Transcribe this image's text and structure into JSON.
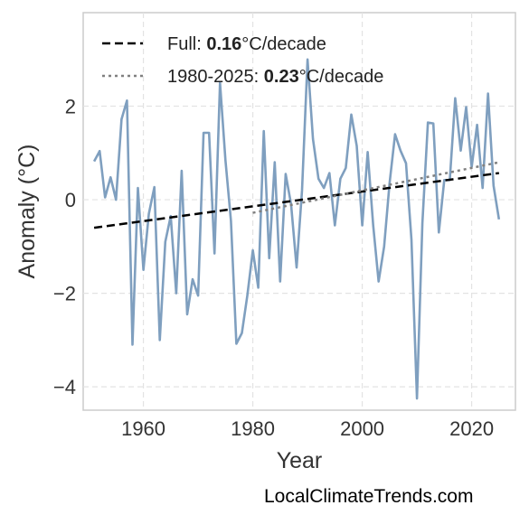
{
  "chart_data": {
    "type": "line",
    "xlabel": "Year",
    "ylabel": "Anomaly (°C)",
    "xlim": [
      1949,
      2028
    ],
    "ylim": [
      -4.5,
      4.0
    ],
    "xticks": [
      1960,
      1980,
      2000,
      2020
    ],
    "yticks": [
      2,
      0,
      -2,
      -4
    ],
    "ytick_labels": [
      "2",
      "0",
      "−2",
      "−4"
    ],
    "grid": true,
    "legend_position": "top-left",
    "series": [
      {
        "color": "#7f9fbf",
        "x": [
          1951,
          1952,
          1953,
          1954,
          1955,
          1956,
          1957,
          1958,
          1959,
          1960,
          1961,
          1962,
          1963,
          1964,
          1965,
          1966,
          1967,
          1968,
          1969,
          1970,
          1971,
          1972,
          1973,
          1974,
          1975,
          1976,
          1977,
          1978,
          1979,
          1980,
          1981,
          1982,
          1983,
          1984,
          1985,
          1986,
          1987,
          1988,
          1989,
          1990,
          1991,
          1992,
          1993,
          1994,
          1995,
          1996,
          1997,
          1998,
          1999,
          2000,
          2001,
          2002,
          2003,
          2004,
          2005,
          2006,
          2007,
          2008,
          2009,
          2010,
          2011,
          2012,
          2013,
          2014,
          2015,
          2016,
          2017,
          2018,
          2019,
          2020,
          2021,
          2022,
          2023,
          2024,
          2025
        ],
        "y": [
          0.82,
          1.04,
          0.05,
          0.48,
          0.0,
          1.72,
          2.12,
          -3.1,
          0.25,
          -1.5,
          -0.3,
          0.27,
          -3.0,
          -0.9,
          -0.35,
          -2.0,
          0.62,
          -2.45,
          -1.7,
          -2.05,
          1.43,
          1.43,
          -1.15,
          2.5,
          0.85,
          -0.45,
          -3.08,
          -2.85,
          -2.05,
          -1.08,
          -1.88,
          1.47,
          -1.25,
          0.8,
          -1.75,
          0.55,
          -0.1,
          -1.45,
          0.2,
          3.0,
          1.3,
          0.45,
          0.25,
          0.57,
          -0.55,
          0.45,
          0.68,
          1.82,
          1.15,
          -0.55,
          1.02,
          -0.55,
          -1.75,
          -1.0,
          0.35,
          1.4,
          1.05,
          0.78,
          -0.85,
          -4.25,
          -0.5,
          1.65,
          1.63,
          -0.7,
          0.42,
          0.42,
          2.17,
          1.05,
          1.98,
          0.7,
          1.6,
          0.25,
          2.27,
          0.3,
          -0.42
        ]
      }
    ],
    "trend_lines": [
      {
        "name_prefix": "Full: ",
        "name_value": "0.16",
        "name_suffix": "°C/decade",
        "style": "dashed",
        "color": "#000000",
        "x": [
          1951,
          2025
        ],
        "y": [
          -0.6,
          0.57
        ]
      },
      {
        "name_prefix": "1980-2025: ",
        "name_value": "0.23",
        "name_suffix": "°C/decade",
        "style": "dotted",
        "color": "#808080",
        "x": [
          1980,
          2025
        ],
        "y": [
          -0.28,
          0.8
        ]
      }
    ]
  },
  "watermark": "LocalClimateTrends.com"
}
